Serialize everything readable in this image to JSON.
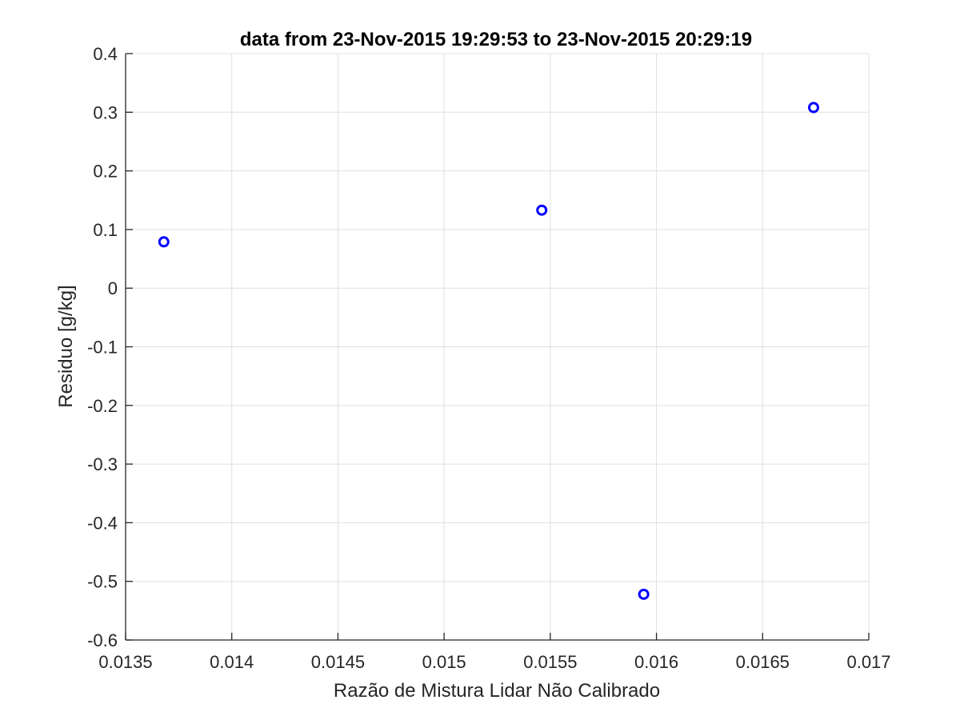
{
  "chart_data": {
    "type": "scatter",
    "title": "data from 23-Nov-2015 19:29:53 to 23-Nov-2015 20:29:19",
    "xlabel": "Razão de Mistura Lidar Não Calibrado",
    "ylabel": "Residuo [g/kg]",
    "xlim": [
      0.0135,
      0.017
    ],
    "ylim": [
      -0.6,
      0.4
    ],
    "xticks": [
      0.0135,
      0.014,
      0.0145,
      0.015,
      0.0155,
      0.016,
      0.0165,
      0.017
    ],
    "xtick_labels": [
      "0.0135",
      "0.014",
      "0.0145",
      "0.015",
      "0.0155",
      "0.016",
      "0.0165",
      "0.017"
    ],
    "yticks": [
      0.4,
      0.3,
      0.2,
      0.1,
      0,
      -0.1,
      -0.2,
      -0.3,
      -0.4,
      -0.5,
      -0.6
    ],
    "ytick_labels": [
      "0.4",
      "0.3",
      "0.2",
      "0.1",
      "0",
      "-0.1",
      "-0.2",
      "-0.3",
      "-0.4",
      "-0.5",
      "-0.6"
    ],
    "grid": true,
    "marker": "circle",
    "series": [
      {
        "points": [
          {
            "x": 0.01368,
            "y": 0.079
          },
          {
            "x": 0.01546,
            "y": 0.133
          },
          {
            "x": 0.01594,
            "y": -0.522
          },
          {
            "x": 0.01674,
            "y": 0.308
          }
        ],
        "color": "#0000ff"
      }
    ],
    "colors": {
      "grid": "#e0e0e0",
      "axis": "#262626",
      "marker": "#0000ff",
      "background": "#ffffff"
    }
  }
}
